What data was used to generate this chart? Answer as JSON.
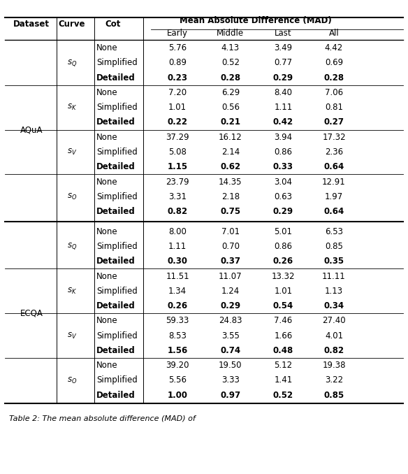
{
  "rows": [
    {
      "dataset": "AQuA",
      "curve": "s_Q",
      "cot": "None",
      "early": "5.76",
      "middle": "4.13",
      "last": "3.49",
      "all": "4.42",
      "bold": false
    },
    {
      "dataset": "AQuA",
      "curve": "s_Q",
      "cot": "Simplified",
      "early": "0.89",
      "middle": "0.52",
      "last": "0.77",
      "all": "0.69",
      "bold": false
    },
    {
      "dataset": "AQuA",
      "curve": "s_Q",
      "cot": "Detailed",
      "early": "0.23",
      "middle": "0.28",
      "last": "0.29",
      "all": "0.28",
      "bold": true
    },
    {
      "dataset": "AQuA",
      "curve": "s_K",
      "cot": "None",
      "early": "7.20",
      "middle": "6.29",
      "last": "8.40",
      "all": "7.06",
      "bold": false
    },
    {
      "dataset": "AQuA",
      "curve": "s_K",
      "cot": "Simplified",
      "early": "1.01",
      "middle": "0.56",
      "last": "1.11",
      "all": "0.81",
      "bold": false
    },
    {
      "dataset": "AQuA",
      "curve": "s_K",
      "cot": "Detailed",
      "early": "0.22",
      "middle": "0.21",
      "last": "0.42",
      "all": "0.27",
      "bold": true
    },
    {
      "dataset": "AQuA",
      "curve": "s_V",
      "cot": "None",
      "early": "37.29",
      "middle": "16.12",
      "last": "3.94",
      "all": "17.32",
      "bold": false
    },
    {
      "dataset": "AQuA",
      "curve": "s_V",
      "cot": "Simplified",
      "early": "5.08",
      "middle": "2.14",
      "last": "0.86",
      "all": "2.36",
      "bold": false
    },
    {
      "dataset": "AQuA",
      "curve": "s_V",
      "cot": "Detailed",
      "early": "1.15",
      "middle": "0.62",
      "last": "0.33",
      "all": "0.64",
      "bold": true
    },
    {
      "dataset": "AQuA",
      "curve": "s_O",
      "cot": "None",
      "early": "23.79",
      "middle": "14.35",
      "last": "3.04",
      "all": "12.91",
      "bold": false
    },
    {
      "dataset": "AQuA",
      "curve": "s_O",
      "cot": "Simplified",
      "early": "3.31",
      "middle": "2.18",
      "last": "0.63",
      "all": "1.97",
      "bold": false
    },
    {
      "dataset": "AQuA",
      "curve": "s_O",
      "cot": "Detailed",
      "early": "0.82",
      "middle": "0.75",
      "last": "0.29",
      "all": "0.64",
      "bold": true
    },
    {
      "dataset": "ECQA",
      "curve": "s_Q",
      "cot": "None",
      "early": "8.00",
      "middle": "7.01",
      "last": "5.01",
      "all": "6.53",
      "bold": false
    },
    {
      "dataset": "ECQA",
      "curve": "s_Q",
      "cot": "Simplified",
      "early": "1.11",
      "middle": "0.70",
      "last": "0.86",
      "all": "0.85",
      "bold": false
    },
    {
      "dataset": "ECQA",
      "curve": "s_Q",
      "cot": "Detailed",
      "early": "0.30",
      "middle": "0.37",
      "last": "0.26",
      "all": "0.35",
      "bold": true
    },
    {
      "dataset": "ECQA",
      "curve": "s_K",
      "cot": "None",
      "early": "11.51",
      "middle": "11.07",
      "last": "13.32",
      "all": "11.11",
      "bold": false
    },
    {
      "dataset": "ECQA",
      "curve": "s_K",
      "cot": "Simplified",
      "early": "1.34",
      "middle": "1.24",
      "last": "1.01",
      "all": "1.13",
      "bold": false
    },
    {
      "dataset": "ECQA",
      "curve": "s_K",
      "cot": "Detailed",
      "early": "0.26",
      "middle": "0.29",
      "last": "0.54",
      "all": "0.34",
      "bold": true
    },
    {
      "dataset": "ECQA",
      "curve": "s_V",
      "cot": "None",
      "early": "59.33",
      "middle": "24.83",
      "last": "7.46",
      "all": "27.40",
      "bold": false
    },
    {
      "dataset": "ECQA",
      "curve": "s_V",
      "cot": "Simplified",
      "early": "8.53",
      "middle": "3.55",
      "last": "1.66",
      "all": "4.01",
      "bold": false
    },
    {
      "dataset": "ECQA",
      "curve": "s_V",
      "cot": "Detailed",
      "early": "1.56",
      "middle": "0.74",
      "last": "0.48",
      "all": "0.82",
      "bold": true
    },
    {
      "dataset": "ECQA",
      "curve": "s_O",
      "cot": "None",
      "early": "39.20",
      "middle": "19.50",
      "last": "5.12",
      "all": "19.38",
      "bold": false
    },
    {
      "dataset": "ECQA",
      "curve": "s_O",
      "cot": "Simplified",
      "early": "5.56",
      "middle": "3.33",
      "last": "1.41",
      "all": "3.22",
      "bold": false
    },
    {
      "dataset": "ECQA",
      "curve": "s_O",
      "cot": "Detailed",
      "early": "1.00",
      "middle": "0.97",
      "last": "0.52",
      "all": "0.85",
      "bold": true
    }
  ],
  "curve_labels": {
    "s_Q": "$s_Q$",
    "s_K": "$s_K$",
    "s_V": "$s_V$",
    "s_O": "$s_O$"
  },
  "mad_header": "Mean Absolute Difference (MAD)",
  "col1_header": "Dataset",
  "col2_header": "Curve",
  "col3_header": "Cot",
  "sub_headers": [
    "Early",
    "Middle",
    "Last",
    "All"
  ],
  "caption": "Table 2: The mean absolute difference (MAD) of",
  "background_color": "#ffffff",
  "fontsize": 8.5,
  "caption_fontsize": 8.0
}
